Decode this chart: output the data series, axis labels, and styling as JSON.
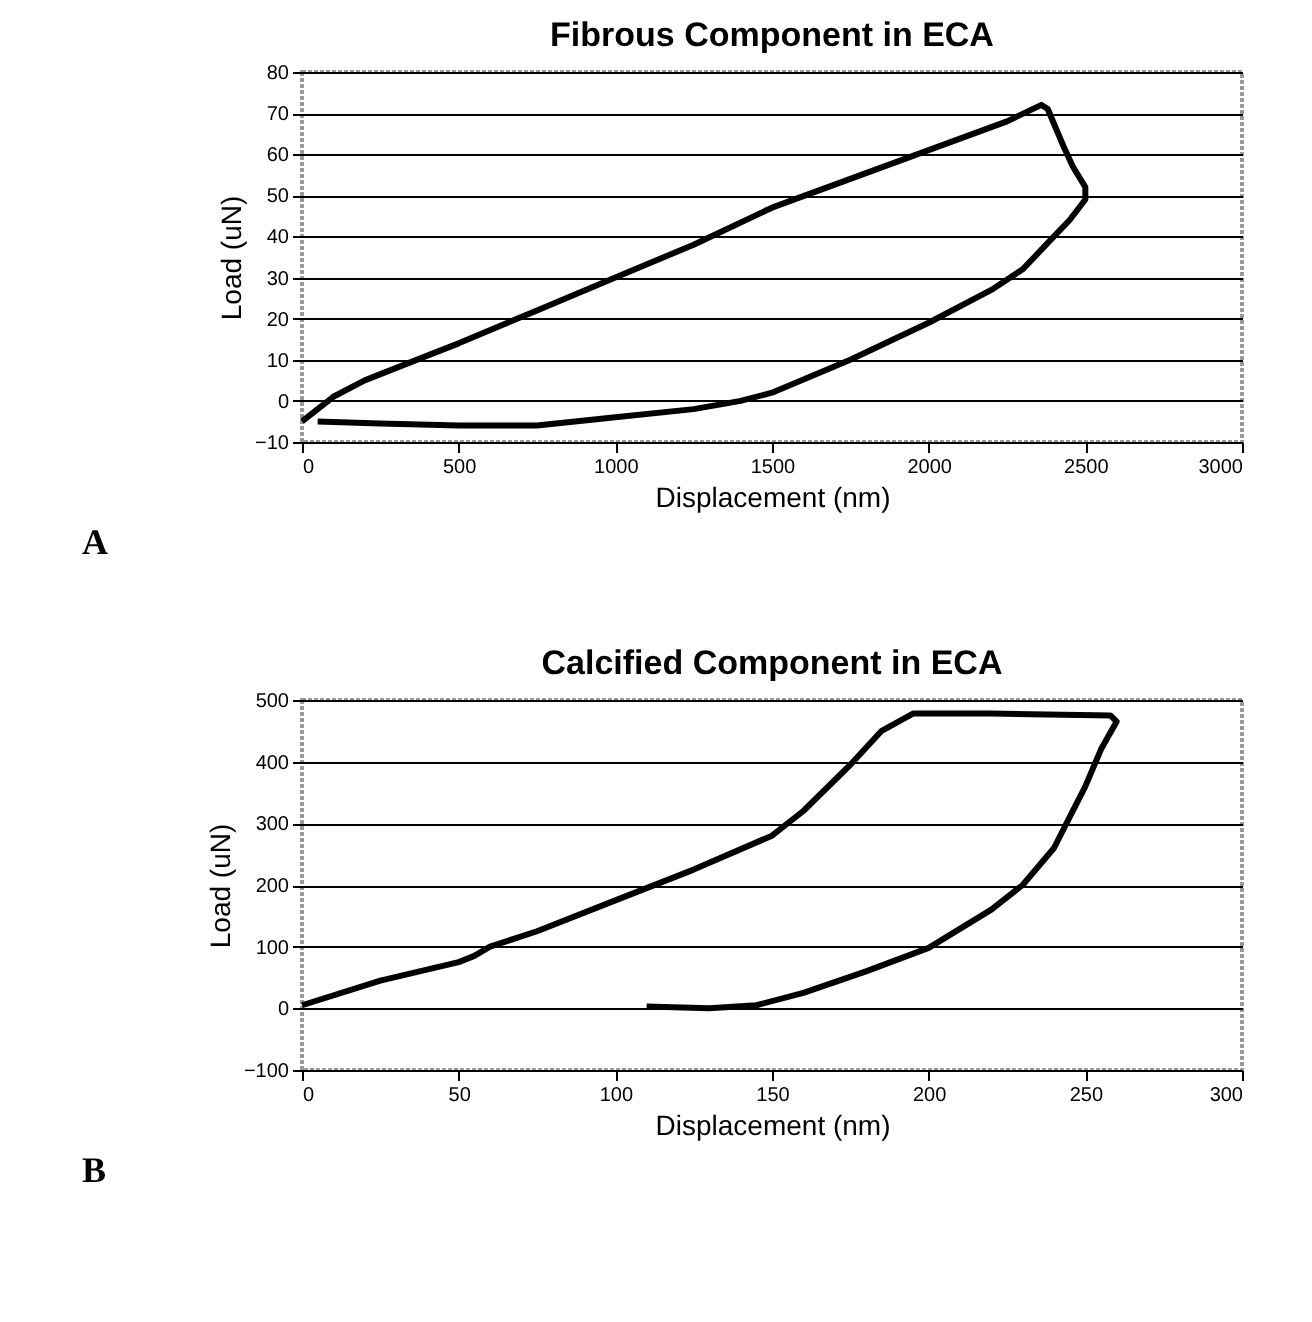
{
  "chart_data": [
    {
      "type": "line",
      "title": "Fibrous Component in ECA",
      "xlabel": "Displacement (nm)",
      "ylabel": "Load (uN)",
      "annotations": [
        "A"
      ],
      "x": [
        0,
        100,
        200,
        400,
        500,
        750,
        1000,
        1250,
        1500,
        1750,
        2000,
        2250,
        2360,
        2380,
        2430,
        2460,
        2500,
        2500,
        2450,
        2400,
        2300,
        2200,
        2000,
        1750,
        1500,
        1400,
        1250,
        1000,
        750,
        500,
        250,
        50
      ],
      "series": [
        {
          "color": "#000000",
          "values": [
            -5,
            1,
            5,
            11,
            14,
            22,
            30,
            38,
            47,
            54,
            61,
            68,
            72,
            71,
            62,
            57,
            52,
            49,
            44,
            40,
            32,
            27,
            19,
            10,
            2,
            0,
            -2,
            -4,
            -6,
            -6,
            -5.5,
            -5
          ]
        }
      ],
      "xlim": [
        0,
        3000
      ],
      "xticks": [
        0,
        500,
        1000,
        1500,
        2000,
        2500,
        3000
      ],
      "ylim": [
        -10,
        80
      ],
      "yticks": [
        -10,
        0,
        10,
        20,
        30,
        40,
        50,
        60,
        70,
        80
      ],
      "grid": "y",
      "legend": false,
      "marker": "none",
      "line_style": "solid"
    },
    {
      "type": "line",
      "title": "Calcified Component in ECA",
      "xlabel": "Displacement (nm)",
      "ylabel": "Load (uN)",
      "annotations": [
        "B"
      ],
      "x": [
        0,
        25,
        50,
        55,
        60,
        75,
        100,
        125,
        150,
        160,
        175,
        185,
        195,
        220,
        258,
        260,
        255,
        250,
        245,
        240,
        230,
        220,
        200,
        180,
        160,
        145,
        130,
        110
      ],
      "series": [
        {
          "color": "#000000",
          "values": [
            5,
            45,
            75,
            85,
            100,
            125,
            175,
            225,
            280,
            320,
            395,
            450,
            478,
            478,
            475,
            465,
            420,
            360,
            310,
            260,
            200,
            160,
            98,
            60,
            25,
            5,
            0,
            3
          ]
        }
      ],
      "xlim": [
        0,
        300
      ],
      "xticks": [
        0,
        50,
        100,
        150,
        200,
        250,
        300
      ],
      "ylim": [
        -100,
        500
      ],
      "yticks": [
        -100,
        0,
        100,
        200,
        300,
        400,
        500
      ],
      "grid": "y",
      "legend": false,
      "marker": "none",
      "line_style": "solid"
    }
  ]
}
